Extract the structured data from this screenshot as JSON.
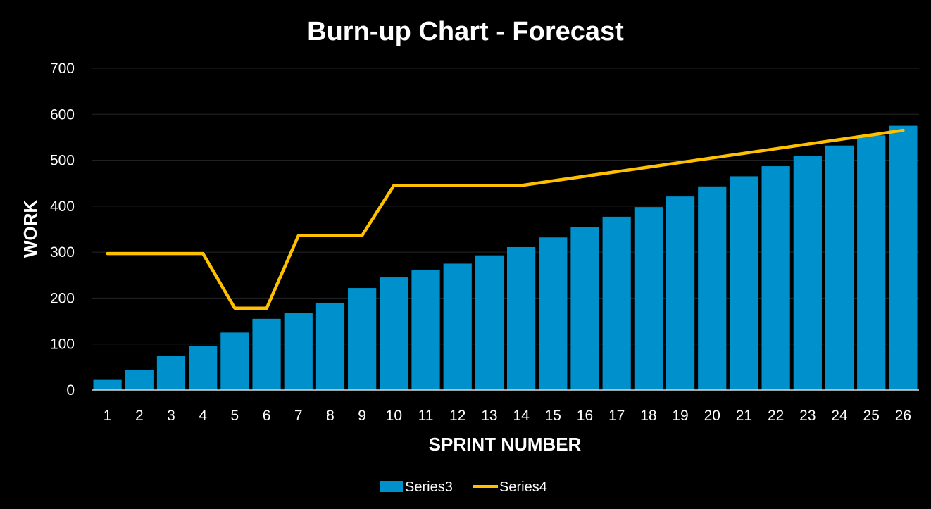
{
  "chart_data": {
    "type": "bar",
    "title": "Burn-up Chart - Forecast",
    "xlabel": "SPRINT NUMBER",
    "ylabel": "WORK",
    "categories": [
      "1",
      "2",
      "3",
      "4",
      "5",
      "6",
      "7",
      "8",
      "9",
      "10",
      "11",
      "12",
      "13",
      "14",
      "15",
      "16",
      "17",
      "18",
      "19",
      "20",
      "21",
      "22",
      "23",
      "24",
      "25",
      "26"
    ],
    "yticks": [
      "0",
      "100",
      "200",
      "300",
      "400",
      "500",
      "600",
      "700"
    ],
    "ylim": [
      0,
      700
    ],
    "grid": true,
    "legend_position": "bottom",
    "series": [
      {
        "name": "Series3",
        "type": "bar",
        "color": "#0091cc",
        "values": [
          22,
          44,
          75,
          95,
          125,
          155,
          167,
          190,
          222,
          245,
          262,
          275,
          293,
          311,
          332,
          354,
          377,
          398,
          421,
          443,
          465,
          487,
          509,
          532,
          554,
          575
        ]
      },
      {
        "name": "Series4",
        "type": "line",
        "color": "#ffc000",
        "values": [
          297,
          297,
          297,
          297,
          178,
          178,
          336,
          336,
          336,
          445,
          445,
          445,
          445,
          445,
          455,
          465,
          475,
          485,
          495,
          505,
          515,
          525,
          535,
          545,
          555,
          565
        ]
      }
    ]
  },
  "colors": {
    "background": "#000000",
    "gridline": "#262626",
    "axis_line": "#d9d9d9",
    "text": "#ffffff"
  }
}
